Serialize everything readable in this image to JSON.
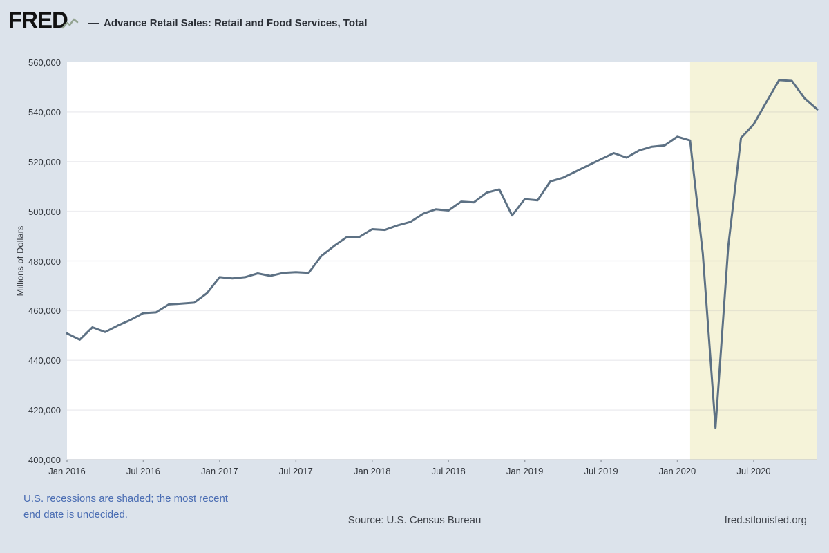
{
  "header": {
    "logo": "FRED",
    "series_marker": "—",
    "title": "Advance Retail Sales: Retail and Food Services, Total"
  },
  "chart_data": {
    "type": "line",
    "title": "Advance Retail Sales: Retail and Food Services, Total",
    "xlabel": "",
    "ylabel": "Millions of Dollars",
    "ylim": [
      400000,
      560000
    ],
    "ytick_step": 20000,
    "grid": true,
    "legend_position": "top",
    "line_color": "#5d7184",
    "recession_band_color": "#f5f3d9",
    "recession_start_date": "2020-02",
    "recession_note": "shaded to right edge of plot (end date undecided)",
    "xtick_labels": [
      "Jan 2016",
      "Jul 2016",
      "Jan 2017",
      "Jul 2017",
      "Jan 2018",
      "Jul 2018",
      "Jan 2019",
      "Jul 2019",
      "Jan 2020",
      "Jul 2020"
    ],
    "xtick_month_indices": [
      0,
      6,
      12,
      18,
      24,
      30,
      36,
      42,
      48,
      54
    ],
    "dates": [
      "2016-01",
      "2016-02",
      "2016-03",
      "2016-04",
      "2016-05",
      "2016-06",
      "2016-07",
      "2016-08",
      "2016-09",
      "2016-10",
      "2016-11",
      "2016-12",
      "2017-01",
      "2017-02",
      "2017-03",
      "2017-04",
      "2017-05",
      "2017-06",
      "2017-07",
      "2017-08",
      "2017-09",
      "2017-10",
      "2017-11",
      "2017-12",
      "2018-01",
      "2018-02",
      "2018-03",
      "2018-04",
      "2018-05",
      "2018-06",
      "2018-07",
      "2018-08",
      "2018-09",
      "2018-10",
      "2018-11",
      "2018-12",
      "2019-01",
      "2019-02",
      "2019-03",
      "2019-04",
      "2019-05",
      "2019-06",
      "2019-07",
      "2019-08",
      "2019-09",
      "2019-10",
      "2019-11",
      "2019-12",
      "2020-01",
      "2020-02",
      "2020-03",
      "2020-04",
      "2020-05",
      "2020-06",
      "2020-07",
      "2020-08",
      "2020-09",
      "2020-10",
      "2020-11",
      "2020-12"
    ],
    "values": [
      450800,
      448300,
      453300,
      451400,
      454000,
      456300,
      459000,
      459300,
      462500,
      462800,
      463200,
      467000,
      473500,
      473000,
      473500,
      475000,
      474000,
      475200,
      475500,
      475200,
      482000,
      486000,
      489600,
      489700,
      492800,
      492500,
      494300,
      495700,
      499000,
      500800,
      500300,
      503900,
      503600,
      507500,
      508800,
      498300,
      504900,
      504400,
      512000,
      513500,
      516000,
      518500,
      521000,
      523400,
      521600,
      524500,
      526000,
      526500,
      530000,
      528500,
      483000,
      412800,
      486000,
      529500,
      535000,
      544000,
      552800,
      552500,
      545500,
      541000
    ]
  },
  "footer": {
    "note": "U.S. recessions are shaded; the most recent end date is undecided.",
    "source": "Source: U.S. Census Bureau",
    "site": "fred.stlouisfed.org"
  }
}
